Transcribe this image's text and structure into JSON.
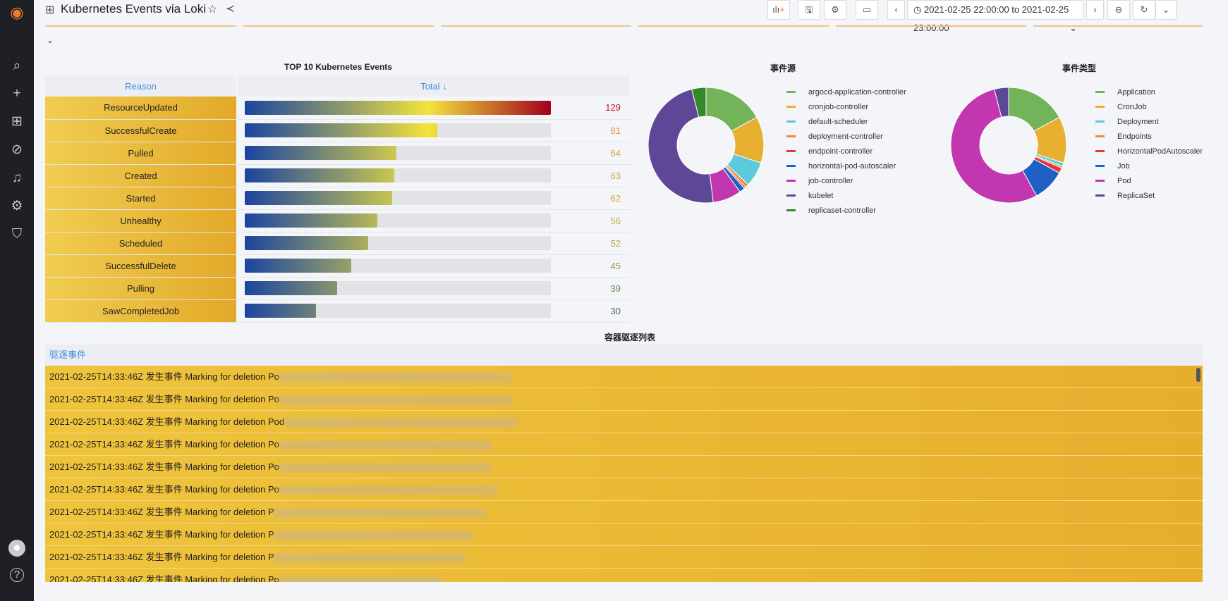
{
  "header": {
    "title": "Kubernetes Events via Loki",
    "time_range": "2021-02-25 22:00:00 to 2021-02-25 23:00:00"
  },
  "table": {
    "title": "TOP 10 Kubernetes Events",
    "col_reason": "Reason",
    "col_total": "Total ↓",
    "rows": [
      {
        "reason": "ResourceUpdated",
        "total": "129",
        "color": "#c4162a"
      },
      {
        "reason": "SuccessfulCreate",
        "total": "81",
        "color": "#e39b2c"
      },
      {
        "reason": "Pulled",
        "total": "64",
        "color": "#d2a93a"
      },
      {
        "reason": "Created",
        "total": "63",
        "color": "#d2a93a"
      },
      {
        "reason": "Started",
        "total": "62",
        "color": "#d2ab3a"
      },
      {
        "reason": "Unhealthy",
        "total": "56",
        "color": "#c4ae40"
      },
      {
        "reason": "Scheduled",
        "total": "52",
        "color": "#b4a848"
      },
      {
        "reason": "SuccessfulDelete",
        "total": "45",
        "color": "#8e9a52"
      },
      {
        "reason": "Pulling",
        "total": "39",
        "color": "#6f8a5e"
      },
      {
        "reason": "SawCompletedJob",
        "total": "30",
        "color": "#4a6a88"
      }
    ],
    "max": 129
  },
  "chart_data": [
    {
      "type": "pie",
      "title": "事件源",
      "labels": [
        "argocd-application-controller",
        "cronjob-controller",
        "default-scheduler",
        "deployment-controller",
        "endpoint-controller",
        "horizontal-pod-autoscaler",
        "job-controller",
        "kubelet",
        "replicaset-controller"
      ],
      "values": [
        17,
        13,
        7,
        1,
        0.5,
        1.5,
        8,
        48,
        4
      ],
      "colors": [
        "#73b35a",
        "#e8b030",
        "#5cc9dd",
        "#f08a3c",
        "#e0373f",
        "#1f60c4",
        "#c236b0",
        "#5e4796",
        "#37872d"
      ]
    },
    {
      "type": "pie",
      "title": "事件类型",
      "labels": [
        "Application",
        "CronJob",
        "Deployment",
        "Endpoints",
        "HorizontalPodAutoscaler",
        "Job",
        "Pod",
        "ReplicaSet"
      ],
      "values": [
        17,
        13,
        1,
        0.5,
        1.5,
        9,
        54,
        4
      ],
      "colors": [
        "#73b35a",
        "#e8b030",
        "#5cc9dd",
        "#f08a3c",
        "#e0373f",
        "#1f60c4",
        "#c236b0",
        "#5e4796"
      ]
    }
  ],
  "logs": {
    "title": "容器驱逐列表",
    "header": "驱逐事件",
    "rows": [
      "2021-02-25T14:33:46Z 发生事件 Marking for deletion Po",
      "2021-02-25T14:33:46Z 发生事件 Marking for deletion Po",
      "2021-02-25T14:33:46Z 发生事件 Marking for deletion Pod",
      "2021-02-25T14:33:46Z 发生事件 Marking for deletion Po",
      "2021-02-25T14:33:46Z 发生事件 Marking for deletion Po",
      "2021-02-25T14:33:46Z 发生事件 Marking for deletion Po",
      "2021-02-25T14:33:46Z 发生事件 Marking for deletion P",
      "2021-02-25T14:33:46Z 发生事件 Marking for deletion P",
      "2021-02-25T14:33:46Z 发生事件 Marking for deletion P",
      "2021-02-25T14:33:46Z 发生事件 Marking for deletion Po"
    ]
  }
}
